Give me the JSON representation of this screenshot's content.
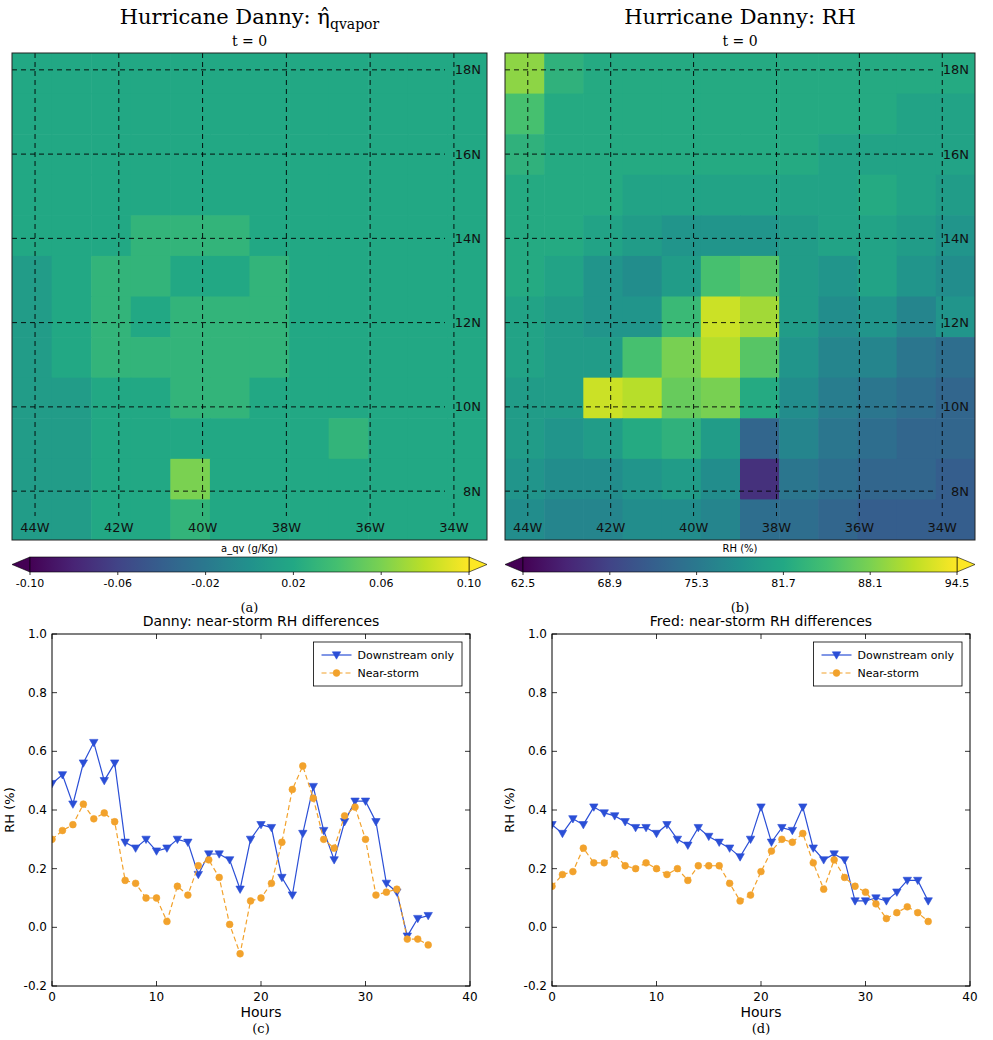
{
  "chart_data": [
    {
      "type": "heatmap",
      "title": "Hurricane Danny: η̂",
      "title_subscript": "qvapor",
      "subtitle": "t = 0",
      "panel_label": "(a)",
      "xlim": [
        -44.55,
        -33.21
      ],
      "ylim": [
        6.84,
        18.4
      ],
      "xticks": [
        {
          "value": -44,
          "label": "44W"
        },
        {
          "value": -42,
          "label": "42W"
        },
        {
          "value": -40,
          "label": "40W"
        },
        {
          "value": -38,
          "label": "38W"
        },
        {
          "value": -36,
          "label": "36W"
        },
        {
          "value": -34,
          "label": "34W"
        }
      ],
      "yticks": [
        {
          "value": 8,
          "label": "8N"
        },
        {
          "value": 10,
          "label": "10N"
        },
        {
          "value": 12,
          "label": "12N"
        },
        {
          "value": 14,
          "label": "14N"
        },
        {
          "value": 16,
          "label": "16N"
        },
        {
          "value": 18,
          "label": "18N"
        }
      ],
      "grid": true,
      "cells": [
        [
          0.02,
          0.02,
          0.02,
          0.02,
          0.02,
          0.02,
          0.02,
          0.02,
          0.02,
          0.02,
          0.02,
          0.02
        ],
        [
          0.02,
          0.02,
          0.02,
          0.02,
          0.02,
          0.02,
          0.02,
          0.02,
          0.02,
          0.02,
          0.02,
          0.02
        ],
        [
          0.02,
          0.02,
          0.02,
          0.02,
          0.02,
          0.02,
          0.02,
          0.02,
          0.02,
          0.02,
          0.02,
          0.02
        ],
        [
          0.02,
          0.02,
          0.02,
          0.02,
          0.02,
          0.02,
          0.02,
          0.02,
          0.02,
          0.02,
          0.02,
          0.02
        ],
        [
          0.02,
          0.02,
          0.02,
          0.03,
          0.03,
          0.03,
          0.02,
          0.02,
          0.02,
          0.02,
          0.02,
          0.02
        ],
        [
          0.01,
          0.02,
          0.03,
          0.03,
          0.02,
          0.02,
          0.03,
          0.02,
          0.02,
          0.02,
          0.02,
          0.02
        ],
        [
          0.01,
          0.02,
          0.03,
          0.02,
          0.03,
          0.03,
          0.03,
          0.02,
          0.02,
          0.02,
          0.02,
          0.02
        ],
        [
          0.01,
          0.02,
          0.03,
          0.03,
          0.03,
          0.03,
          0.03,
          0.02,
          0.02,
          0.02,
          0.02,
          0.02
        ],
        [
          0.01,
          0.01,
          0.02,
          0.02,
          0.03,
          0.03,
          0.02,
          0.02,
          0.02,
          0.02,
          0.02,
          0.02
        ],
        [
          0.01,
          0.01,
          0.02,
          0.02,
          0.02,
          0.02,
          0.02,
          0.02,
          0.03,
          0.02,
          0.02,
          0.02
        ],
        [
          0.01,
          0.01,
          0.02,
          0.02,
          0.06,
          0.02,
          0.02,
          0.02,
          0.02,
          0.02,
          0.02,
          0.02
        ],
        [
          0.01,
          0.01,
          0.02,
          0.02,
          0.03,
          0.02,
          0.02,
          0.02,
          0.02,
          0.02,
          0.02,
          0.02
        ]
      ],
      "color_label": "a_qv (g/Kg)",
      "color_range": [
        -0.1,
        0.1
      ],
      "color_ticks": [
        {
          "value": -0.1,
          "label": "-0.10"
        },
        -0.06,
        -0.02,
        0.02,
        0.06,
        {
          "value": 0.1,
          "label": "0.10"
        }
      ]
    },
    {
      "type": "heatmap",
      "title": "Hurricane Danny: RH",
      "subtitle": "t = 0",
      "panel_label": "(b)",
      "xlim": [
        -44.55,
        -33.21
      ],
      "ylim": [
        6.84,
        18.4
      ],
      "xticks": [
        {
          "value": -44,
          "label": "44W"
        },
        {
          "value": -42,
          "label": "42W"
        },
        {
          "value": -40,
          "label": "40W"
        },
        {
          "value": -38,
          "label": "38W"
        },
        {
          "value": -36,
          "label": "36W"
        },
        {
          "value": -34,
          "label": "34W"
        }
      ],
      "yticks": [
        {
          "value": 8,
          "label": "8N"
        },
        {
          "value": 10,
          "label": "10N"
        },
        {
          "value": 12,
          "label": "12N"
        },
        {
          "value": 14,
          "label": "14N"
        },
        {
          "value": 16,
          "label": "16N"
        },
        {
          "value": 18,
          "label": "18N"
        }
      ],
      "grid": true,
      "cells": [
        [
          89,
          83,
          82,
          82,
          82,
          82,
          82,
          82,
          82,
          82,
          82,
          82
        ],
        [
          85,
          82,
          82,
          82,
          82,
          82,
          82,
          82,
          82,
          82,
          81,
          81
        ],
        [
          83,
          82,
          82,
          82,
          82,
          82,
          82,
          82,
          81,
          81,
          81,
          81
        ],
        [
          82,
          82,
          82,
          81,
          81,
          81,
          81,
          81,
          81,
          82,
          81,
          80
        ],
        [
          82,
          82,
          81,
          80,
          79,
          79,
          79,
          80,
          81,
          81,
          80,
          79
        ],
        [
          82,
          81,
          79,
          78,
          80,
          85,
          86,
          80,
          79,
          81,
          79,
          78
        ],
        [
          81,
          80,
          79,
          79,
          84,
          92,
          90,
          80,
          78,
          79,
          77,
          79
        ],
        [
          81,
          80,
          80,
          85,
          88,
          91,
          86,
          79,
          77,
          77,
          75,
          74
        ],
        [
          80,
          80,
          92,
          91,
          87,
          88,
          82,
          78,
          76,
          75,
          74,
          73
        ],
        [
          80,
          79,
          80,
          82,
          83,
          80,
          73,
          77,
          75,
          74,
          73,
          73
        ],
        [
          79,
          78,
          78,
          79,
          80,
          78,
          67,
          75,
          74,
          73,
          73,
          72
        ],
        [
          78,
          77,
          77,
          78,
          78,
          77,
          74,
          74,
          73,
          72,
          72,
          72
        ]
      ],
      "color_label": "RH (%)",
      "color_range": [
        62.5,
        94.5
      ],
      "color_ticks": [
        62.5,
        68.9,
        75.3,
        81.7,
        88.1,
        94.5
      ]
    },
    {
      "type": "line",
      "title": "Danny: near-storm RH differences",
      "x_label": "Hours",
      "y_label": "RH (%)",
      "panel_label": "(c)",
      "x": [
        0,
        1,
        2,
        3,
        4,
        5,
        6,
        7,
        8,
        9,
        10,
        11,
        12,
        13,
        14,
        15,
        16,
        17,
        18,
        19,
        20,
        21,
        22,
        23,
        24,
        25,
        26,
        27,
        28,
        29,
        30,
        31,
        32,
        33,
        34,
        35,
        36
      ],
      "xlim": [
        0,
        40
      ],
      "xticks": [
        0,
        10,
        20,
        30,
        40
      ],
      "ylim": [
        -0.2,
        1.0
      ],
      "yticks": [
        -0.2,
        {
          "value": 0,
          "label": "0.0"
        },
        0.2,
        0.4,
        0.6,
        0.8,
        {
          "value": 1,
          "label": "1.0"
        }
      ],
      "grid": false,
      "legend": "upper right",
      "series": [
        {
          "name": "Downstream only",
          "color": "#2b4fd6",
          "marker": "triangle_down",
          "line_style": "solid",
          "values": [
            0.49,
            0.52,
            0.42,
            0.56,
            0.63,
            0.5,
            0.56,
            0.29,
            0.27,
            0.3,
            0.26,
            0.27,
            0.3,
            0.29,
            0.18,
            0.25,
            0.25,
            0.23,
            0.13,
            0.3,
            0.35,
            0.34,
            0.17,
            0.11,
            0.32,
            0.48,
            0.33,
            0.23,
            0.36,
            0.43,
            0.43,
            0.36,
            0.15,
            0.12,
            -0.03,
            0.03,
            0.04
          ]
        },
        {
          "name": "Near-storm",
          "color": "#f2a22c",
          "marker": "circle",
          "line_style": "dashed",
          "values": [
            0.3,
            0.33,
            0.35,
            0.42,
            0.37,
            0.39,
            0.36,
            0.16,
            0.15,
            0.1,
            0.1,
            0.02,
            0.14,
            0.11,
            0.21,
            0.23,
            0.17,
            0.01,
            -0.09,
            0.09,
            0.1,
            0.15,
            0.29,
            0.47,
            0.55,
            0.44,
            0.3,
            0.27,
            0.38,
            0.41,
            0.3,
            0.11,
            0.12,
            0.13,
            -0.04,
            -0.04,
            -0.06
          ]
        }
      ]
    },
    {
      "type": "line",
      "title": "Fred: near-storm RH differences",
      "x_label": "Hours",
      "y_label": "RH (%)",
      "panel_label": "(d)",
      "x": [
        0,
        1,
        2,
        3,
        4,
        5,
        6,
        7,
        8,
        9,
        10,
        11,
        12,
        13,
        14,
        15,
        16,
        17,
        18,
        19,
        20,
        21,
        22,
        23,
        24,
        25,
        26,
        27,
        28,
        29,
        30,
        31,
        32,
        33,
        34,
        35,
        36
      ],
      "xlim": [
        0,
        40
      ],
      "xticks": [
        0,
        10,
        20,
        30,
        40
      ],
      "ylim": [
        -0.2,
        1.0
      ],
      "yticks": [
        -0.2,
        {
          "value": 0,
          "label": "0.0"
        },
        0.2,
        0.4,
        0.6,
        0.8,
        {
          "value": 1,
          "label": "1.0"
        }
      ],
      "grid": false,
      "legend": "upper right",
      "series": [
        {
          "name": "Downstream only",
          "color": "#2b4fd6",
          "marker": "triangle_down",
          "line_style": "solid",
          "values": [
            0.35,
            0.32,
            0.37,
            0.35,
            0.41,
            0.39,
            0.38,
            0.36,
            0.34,
            0.34,
            0.32,
            0.35,
            0.3,
            0.28,
            0.34,
            0.31,
            0.29,
            0.27,
            0.24,
            0.3,
            0.41,
            0.29,
            0.34,
            0.33,
            0.41,
            0.27,
            0.23,
            0.25,
            0.23,
            0.09,
            0.09,
            0.1,
            0.09,
            0.12,
            0.16,
            0.16,
            0.09
          ]
        },
        {
          "name": "Near-storm",
          "color": "#f2a22c",
          "marker": "circle",
          "line_style": "dashed",
          "values": [
            0.14,
            0.18,
            0.19,
            0.27,
            0.22,
            0.22,
            0.25,
            0.21,
            0.2,
            0.22,
            0.2,
            0.18,
            0.2,
            0.16,
            0.21,
            0.21,
            0.21,
            0.15,
            0.09,
            0.11,
            0.19,
            0.26,
            0.3,
            0.29,
            0.32,
            0.22,
            0.13,
            0.23,
            0.17,
            0.14,
            0.12,
            0.08,
            0.03,
            0.05,
            0.07,
            0.05,
            0.02
          ]
        }
      ]
    }
  ]
}
